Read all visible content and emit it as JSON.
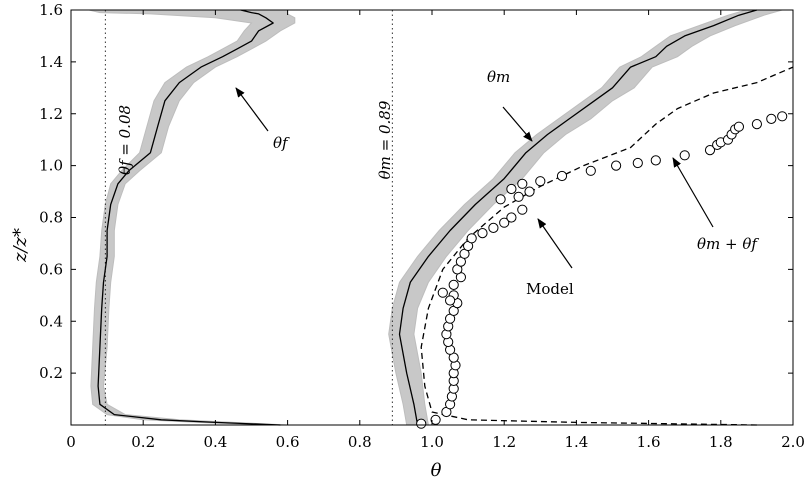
{
  "chart_data": {
    "type": "line",
    "xlabel": "θ",
    "ylabel": "z/z*",
    "xlim": [
      0,
      2.0
    ],
    "ylim": [
      0,
      1.6
    ],
    "xticks": [
      0,
      0.2,
      0.4,
      0.6,
      0.8,
      1.0,
      1.2,
      1.4,
      1.6,
      1.8,
      2.0
    ],
    "xtick_labels": [
      "0",
      "0.2",
      "0.4",
      "0.6",
      "0.8",
      "1.0",
      "1.2",
      "1.4",
      "1.6",
      "1.8",
      "2.0"
    ],
    "yticks": [
      0.2,
      0.4,
      0.6,
      0.8,
      1.0,
      1.2,
      1.4,
      1.6
    ],
    "ytick_labels": [
      "0.2",
      "0.4",
      "0.6",
      "0.8",
      "1.0",
      "1.2",
      "1.4",
      "1.6"
    ],
    "grid": false,
    "reference_lines": [
      {
        "label": "θf = 0.08",
        "x": 0.095
      },
      {
        "label": "θm = 0.89",
        "x": 0.89
      }
    ],
    "series": [
      {
        "name": "θf",
        "style": "solid-black",
        "x": [
          0.58,
          0.4,
          0.25,
          0.12,
          0.08,
          0.075,
          0.08,
          0.085,
          0.09,
          0.1,
          0.1,
          0.11,
          0.13,
          0.16,
          0.22,
          0.24,
          0.26,
          0.3,
          0.36,
          0.42,
          0.46,
          0.5,
          0.52,
          0.56,
          0.54,
          0.52,
          0.5,
          0.47
        ],
        "y": [
          0.0,
          0.01,
          0.02,
          0.04,
          0.08,
          0.15,
          0.3,
          0.45,
          0.55,
          0.65,
          0.75,
          0.85,
          0.93,
          0.98,
          1.05,
          1.15,
          1.25,
          1.32,
          1.38,
          1.42,
          1.45,
          1.48,
          1.52,
          1.55,
          1.57,
          1.585,
          1.59,
          1.6
        ]
      },
      {
        "name": "θm",
        "style": "solid-black",
        "x": [
          0.96,
          0.95,
          0.93,
          0.91,
          0.92,
          0.94,
          0.99,
          1.05,
          1.12,
          1.2,
          1.26,
          1.32,
          1.38,
          1.45,
          1.5,
          1.55,
          1.62,
          1.65,
          1.7,
          1.78,
          1.85,
          1.9
        ],
        "y": [
          0.0,
          0.08,
          0.2,
          0.35,
          0.45,
          0.55,
          0.65,
          0.75,
          0.85,
          0.95,
          1.05,
          1.12,
          1.18,
          1.25,
          1.3,
          1.38,
          1.42,
          1.46,
          1.5,
          1.54,
          1.58,
          1.6
        ]
      },
      {
        "name": "θm + θf",
        "style": "dashed-black",
        "x": [
          1.9,
          1.4,
          1.1,
          1.0,
          0.98,
          0.97,
          0.99,
          1.03,
          1.1,
          1.2,
          1.3,
          1.42,
          1.55,
          1.62,
          1.68,
          1.78,
          1.9,
          2.0
        ],
        "y": [
          0.0,
          0.01,
          0.02,
          0.05,
          0.15,
          0.3,
          0.45,
          0.6,
          0.72,
          0.84,
          0.92,
          1.0,
          1.07,
          1.16,
          1.22,
          1.28,
          1.32,
          1.38
        ]
      },
      {
        "name": "Model",
        "style": "open-circles",
        "x": [
          0.97,
          1.01,
          1.04,
          1.05,
          1.055,
          1.06,
          1.06,
          1.06,
          1.065,
          1.06,
          1.05,
          1.045,
          1.04,
          1.045,
          1.05,
          1.06,
          1.07,
          1.06,
          1.05,
          1.03,
          1.06,
          1.08,
          1.07,
          1.08,
          1.09,
          1.1,
          1.11,
          1.14,
          1.17,
          1.2,
          1.22,
          1.25,
          1.24,
          1.27,
          1.19,
          1.22,
          1.25,
          1.3,
          1.36,
          1.44,
          1.51,
          1.57,
          1.62,
          1.7,
          1.77,
          1.79,
          1.8,
          1.82,
          1.83,
          1.84,
          1.85,
          1.9,
          1.94,
          1.97
        ],
        "y": [
          0.005,
          0.02,
          0.05,
          0.08,
          0.11,
          0.14,
          0.17,
          0.2,
          0.23,
          0.26,
          0.29,
          0.32,
          0.35,
          0.38,
          0.41,
          0.44,
          0.47,
          0.5,
          0.48,
          0.51,
          0.54,
          0.57,
          0.6,
          0.63,
          0.66,
          0.69,
          0.72,
          0.74,
          0.76,
          0.78,
          0.8,
          0.83,
          0.88,
          0.9,
          0.87,
          0.91,
          0.93,
          0.94,
          0.96,
          0.98,
          1.0,
          1.01,
          1.02,
          1.04,
          1.06,
          1.08,
          1.09,
          1.1,
          1.12,
          1.14,
          1.15,
          1.16,
          1.18,
          1.19
        ]
      }
    ],
    "bands": [
      {
        "for": "θf",
        "left": [
          0.55,
          0.35,
          0.2,
          0.1,
          0.06,
          0.055,
          0.06,
          0.065,
          0.07,
          0.08,
          0.085,
          0.095,
          0.11,
          0.14,
          0.19,
          0.21,
          0.23,
          0.26,
          0.32,
          0.38,
          0.42,
          0.46,
          0.48,
          0.5,
          0.4,
          0.22,
          0.08,
          0.05
        ],
        "right": [
          0.6,
          0.45,
          0.3,
          0.15,
          0.1,
          0.09,
          0.1,
          0.105,
          0.11,
          0.12,
          0.12,
          0.13,
          0.15,
          0.19,
          0.25,
          0.27,
          0.3,
          0.34,
          0.4,
          0.46,
          0.5,
          0.54,
          0.58,
          0.62,
          0.62,
          0.6,
          0.6,
          0.6
        ]
      },
      {
        "for": "θm",
        "left": [
          0.93,
          0.92,
          0.9,
          0.88,
          0.89,
          0.91,
          0.96,
          1.02,
          1.09,
          1.17,
          1.23,
          1.29,
          1.35,
          1.42,
          1.47,
          1.52,
          1.58,
          1.62,
          1.66,
          1.74,
          1.82,
          1.87
        ],
        "right": [
          0.99,
          0.98,
          0.97,
          0.95,
          0.96,
          0.99,
          1.04,
          1.1,
          1.17,
          1.25,
          1.31,
          1.37,
          1.44,
          1.5,
          1.56,
          1.61,
          1.68,
          1.72,
          1.77,
          1.84,
          1.92,
          1.97
        ]
      }
    ],
    "annotations": [
      {
        "text": "θm",
        "target_series": "θm"
      },
      {
        "text": "θf",
        "target_series": "θf"
      },
      {
        "text": "Model",
        "target_series": "Model"
      },
      {
        "text": "θm + θf",
        "target_series": "θm + θf"
      }
    ]
  },
  "labels": {
    "ref_f": "θf = 0.08",
    "ref_m": "θm = 0.89",
    "ann_theta_m": "θm",
    "ann_theta_f": "θf",
    "ann_model": "Model",
    "ann_sum": "θm + θf",
    "xlabel": "θ",
    "ylabel": "z/z*"
  }
}
